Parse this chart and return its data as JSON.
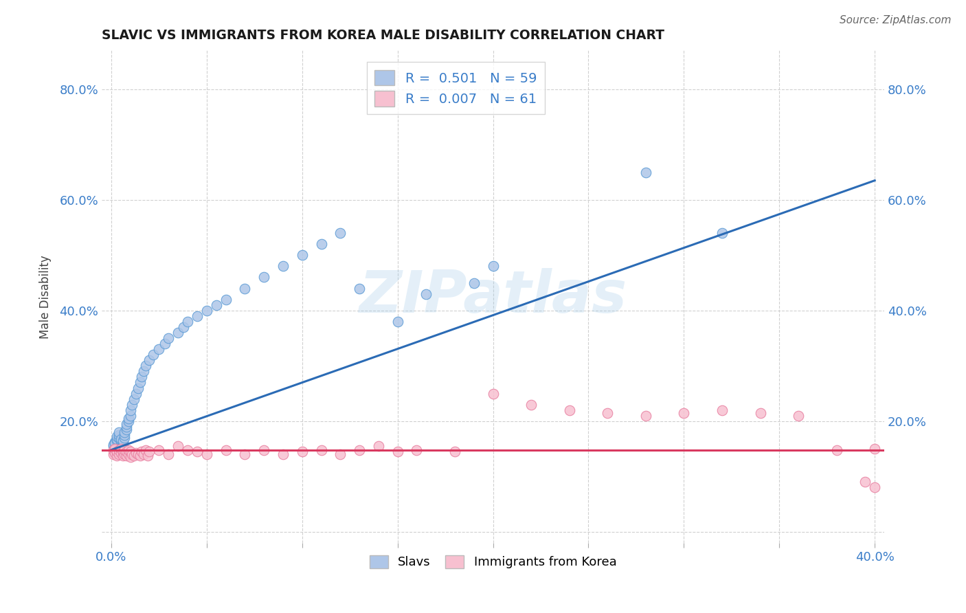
{
  "title": "SLAVIC VS IMMIGRANTS FROM KOREA MALE DISABILITY CORRELATION CHART",
  "source": "Source: ZipAtlas.com",
  "ylabel": "Male Disability",
  "watermark": "ZIPatlas",
  "xlim_min": -0.005,
  "xlim_max": 0.405,
  "ylim_min": -0.02,
  "ylim_max": 0.87,
  "xticks": [
    0.0,
    0.05,
    0.1,
    0.15,
    0.2,
    0.25,
    0.3,
    0.35,
    0.4
  ],
  "yticks": [
    0.0,
    0.2,
    0.4,
    0.6,
    0.8
  ],
  "slavs_R": "0.501",
  "slavs_N": "59",
  "korea_R": "0.007",
  "korea_N": "61",
  "slavs_color": "#aec6e8",
  "slavs_edge_color": "#5b9bd5",
  "korea_color": "#f7c0d0",
  "korea_edge_color": "#e87fa0",
  "slavs_line_color": "#2b6bb5",
  "korea_line_color": "#d9395f",
  "grid_color": "#d0d0d0",
  "background_color": "#ffffff",
  "tick_color": "#3a7dc9",
  "legend_val_color": "#3a7dc9",
  "slavs_scatter_x": [
    0.001,
    0.001,
    0.002,
    0.002,
    0.003,
    0.003,
    0.003,
    0.004,
    0.004,
    0.004,
    0.005,
    0.005,
    0.005,
    0.006,
    0.006,
    0.006,
    0.007,
    0.007,
    0.007,
    0.008,
    0.008,
    0.008,
    0.009,
    0.009,
    0.01,
    0.01,
    0.011,
    0.012,
    0.013,
    0.014,
    0.015,
    0.016,
    0.017,
    0.018,
    0.02,
    0.022,
    0.025,
    0.028,
    0.03,
    0.035,
    0.038,
    0.04,
    0.045,
    0.05,
    0.055,
    0.06,
    0.07,
    0.08,
    0.09,
    0.1,
    0.11,
    0.12,
    0.13,
    0.15,
    0.165,
    0.19,
    0.2,
    0.28,
    0.32
  ],
  "slavs_scatter_y": [
    0.155,
    0.158,
    0.162,
    0.16,
    0.165,
    0.168,
    0.172,
    0.17,
    0.175,
    0.18,
    0.162,
    0.165,
    0.168,
    0.158,
    0.162,
    0.165,
    0.17,
    0.175,
    0.18,
    0.185,
    0.19,
    0.195,
    0.2,
    0.205,
    0.21,
    0.22,
    0.23,
    0.24,
    0.25,
    0.26,
    0.27,
    0.28,
    0.29,
    0.3,
    0.31,
    0.32,
    0.33,
    0.34,
    0.35,
    0.36,
    0.37,
    0.38,
    0.39,
    0.4,
    0.41,
    0.42,
    0.44,
    0.46,
    0.48,
    0.5,
    0.52,
    0.54,
    0.44,
    0.38,
    0.43,
    0.45,
    0.48,
    0.65,
    0.54
  ],
  "korea_scatter_x": [
    0.001,
    0.001,
    0.002,
    0.002,
    0.003,
    0.003,
    0.004,
    0.004,
    0.005,
    0.005,
    0.006,
    0.006,
    0.007,
    0.007,
    0.008,
    0.008,
    0.009,
    0.009,
    0.01,
    0.01,
    0.011,
    0.012,
    0.013,
    0.014,
    0.015,
    0.016,
    0.017,
    0.018,
    0.019,
    0.02,
    0.025,
    0.03,
    0.035,
    0.04,
    0.045,
    0.05,
    0.06,
    0.07,
    0.08,
    0.09,
    0.1,
    0.11,
    0.12,
    0.13,
    0.14,
    0.15,
    0.16,
    0.18,
    0.2,
    0.22,
    0.24,
    0.26,
    0.28,
    0.3,
    0.32,
    0.34,
    0.36,
    0.38,
    0.395,
    0.4,
    0.4
  ],
  "korea_scatter_y": [
    0.14,
    0.148,
    0.142,
    0.15,
    0.138,
    0.145,
    0.14,
    0.148,
    0.142,
    0.15,
    0.138,
    0.145,
    0.14,
    0.148,
    0.138,
    0.145,
    0.14,
    0.148,
    0.135,
    0.145,
    0.14,
    0.138,
    0.142,
    0.14,
    0.138,
    0.145,
    0.14,
    0.148,
    0.138,
    0.145,
    0.148,
    0.14,
    0.155,
    0.148,
    0.145,
    0.14,
    0.148,
    0.14,
    0.148,
    0.14,
    0.145,
    0.148,
    0.14,
    0.148,
    0.155,
    0.145,
    0.148,
    0.145,
    0.25,
    0.23,
    0.22,
    0.215,
    0.21,
    0.215,
    0.22,
    0.215,
    0.21,
    0.148,
    0.09,
    0.15,
    0.08
  ]
}
